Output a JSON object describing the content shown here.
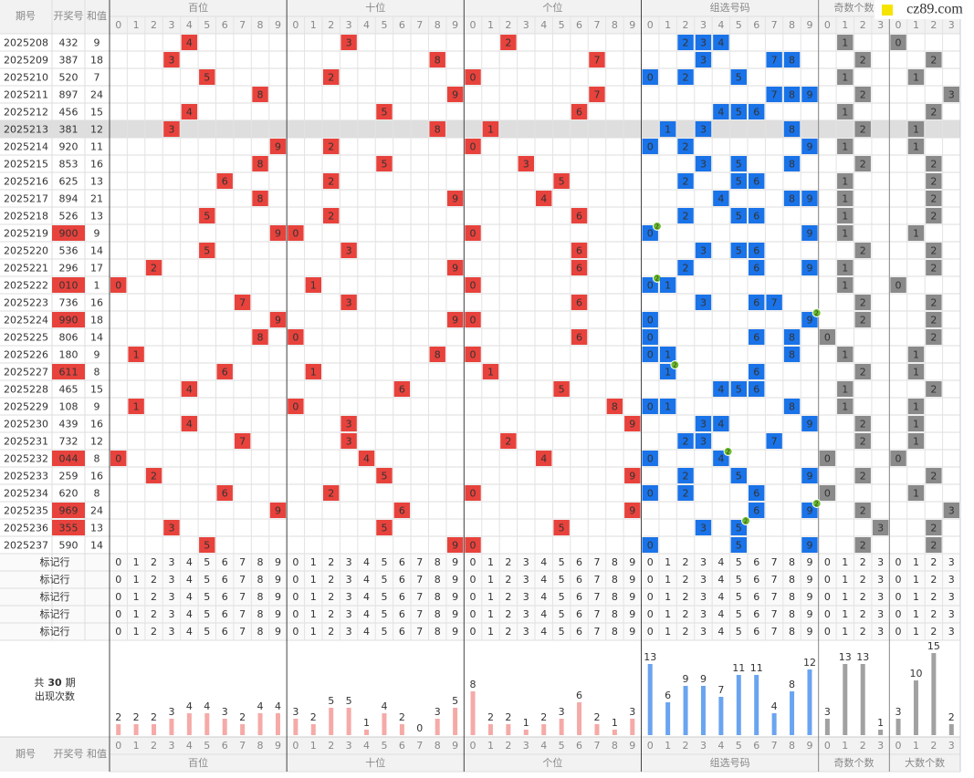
{
  "logo": "cz89.com",
  "header": {
    "issue": "期号",
    "number": "开奖号",
    "sum": "和值"
  },
  "groups": [
    {
      "name": "百位",
      "digits": [
        0,
        1,
        2,
        3,
        4,
        5,
        6,
        7,
        8,
        9
      ]
    },
    {
      "name": "十位",
      "digits": [
        0,
        1,
        2,
        3,
        4,
        5,
        6,
        7,
        8,
        9
      ]
    },
    {
      "name": "个位",
      "digits": [
        0,
        1,
        2,
        3,
        4,
        5,
        6,
        7,
        8,
        9
      ]
    },
    {
      "name": "组选号码",
      "digits": [
        0,
        1,
        2,
        3,
        4,
        5,
        6,
        7,
        8,
        9
      ]
    },
    {
      "name": "奇数个数",
      "digits": [
        0,
        1,
        2,
        3
      ]
    },
    {
      "name": "大数个数",
      "digits": [
        0,
        1,
        2,
        3
      ]
    }
  ],
  "rows": [
    {
      "issue": "2025208",
      "number": "432",
      "sum": 9,
      "digits": [
        4,
        3,
        2
      ],
      "odd": 1,
      "big": 0
    },
    {
      "issue": "2025209",
      "number": "387",
      "sum": 18,
      "digits": [
        3,
        8,
        7
      ],
      "odd": 2,
      "big": 2
    },
    {
      "issue": "2025210",
      "number": "520",
      "sum": 7,
      "digits": [
        5,
        2,
        0
      ],
      "odd": 1,
      "big": 1
    },
    {
      "issue": "2025211",
      "number": "897",
      "sum": 24,
      "digits": [
        8,
        9,
        7
      ],
      "odd": 2,
      "big": 3
    },
    {
      "issue": "2025212",
      "number": "456",
      "sum": 15,
      "digits": [
        4,
        5,
        6
      ],
      "odd": 1,
      "big": 2
    },
    {
      "issue": "2025213",
      "number": "381",
      "sum": 12,
      "digits": [
        3,
        8,
        1
      ],
      "odd": 2,
      "big": 1,
      "highlighted": true
    },
    {
      "issue": "2025214",
      "number": "920",
      "sum": 11,
      "digits": [
        9,
        2,
        0
      ],
      "odd": 1,
      "big": 1
    },
    {
      "issue": "2025215",
      "number": "853",
      "sum": 16,
      "digits": [
        8,
        5,
        3
      ],
      "odd": 2,
      "big": 2
    },
    {
      "issue": "2025216",
      "number": "625",
      "sum": 13,
      "digits": [
        6,
        2,
        5
      ],
      "odd": 1,
      "big": 2
    },
    {
      "issue": "2025217",
      "number": "894",
      "sum": 21,
      "digits": [
        8,
        9,
        4
      ],
      "odd": 1,
      "big": 2
    },
    {
      "issue": "2025218",
      "number": "526",
      "sum": 13,
      "digits": [
        5,
        2,
        6
      ],
      "odd": 1,
      "big": 2
    },
    {
      "issue": "2025219",
      "number": "900",
      "sum": 9,
      "digits": [
        9,
        0,
        0
      ],
      "odd": 1,
      "big": 1,
      "badge": 2
    },
    {
      "issue": "2025220",
      "number": "536",
      "sum": 14,
      "digits": [
        5,
        3,
        6
      ],
      "odd": 2,
      "big": 2
    },
    {
      "issue": "2025221",
      "number": "296",
      "sum": 17,
      "digits": [
        2,
        9,
        6
      ],
      "odd": 1,
      "big": 2
    },
    {
      "issue": "2025222",
      "number": "010",
      "sum": 1,
      "digits": [
        0,
        1,
        0
      ],
      "odd": 1,
      "big": 0,
      "badge": 2
    },
    {
      "issue": "2025223",
      "number": "736",
      "sum": 16,
      "digits": [
        7,
        3,
        6
      ],
      "odd": 2,
      "big": 2
    },
    {
      "issue": "2025224",
      "number": "990",
      "sum": 18,
      "digits": [
        9,
        9,
        0
      ],
      "odd": 2,
      "big": 2,
      "badge": 2
    },
    {
      "issue": "2025225",
      "number": "806",
      "sum": 14,
      "digits": [
        8,
        0,
        6
      ],
      "odd": 0,
      "big": 2
    },
    {
      "issue": "2025226",
      "number": "180",
      "sum": 9,
      "digits": [
        1,
        8,
        0
      ],
      "odd": 1,
      "big": 1
    },
    {
      "issue": "2025227",
      "number": "611",
      "sum": 8,
      "digits": [
        6,
        1,
        1
      ],
      "odd": 2,
      "big": 1,
      "badge": 2
    },
    {
      "issue": "2025228",
      "number": "465",
      "sum": 15,
      "digits": [
        4,
        6,
        5
      ],
      "odd": 1,
      "big": 2
    },
    {
      "issue": "2025229",
      "number": "108",
      "sum": 9,
      "digits": [
        1,
        0,
        8
      ],
      "odd": 1,
      "big": 1
    },
    {
      "issue": "2025230",
      "number": "439",
      "sum": 16,
      "digits": [
        4,
        3,
        9
      ],
      "odd": 2,
      "big": 1
    },
    {
      "issue": "2025231",
      "number": "732",
      "sum": 12,
      "digits": [
        7,
        3,
        2
      ],
      "odd": 2,
      "big": 1
    },
    {
      "issue": "2025232",
      "number": "044",
      "sum": 8,
      "digits": [
        0,
        4,
        4
      ],
      "odd": 0,
      "big": 0,
      "badge": 2
    },
    {
      "issue": "2025233",
      "number": "259",
      "sum": 16,
      "digits": [
        2,
        5,
        9
      ],
      "odd": 2,
      "big": 2
    },
    {
      "issue": "2025234",
      "number": "620",
      "sum": 8,
      "digits": [
        6,
        2,
        0
      ],
      "odd": 0,
      "big": 1
    },
    {
      "issue": "2025235",
      "number": "969",
      "sum": 24,
      "digits": [
        9,
        6,
        9
      ],
      "odd": 2,
      "big": 3,
      "badge": 2
    },
    {
      "issue": "2025236",
      "number": "355",
      "sum": 13,
      "digits": [
        3,
        5,
        5
      ],
      "odd": 3,
      "big": 2,
      "badge": 2
    },
    {
      "issue": "2025237",
      "number": "590",
      "sum": 14,
      "digits": [
        5,
        9,
        0
      ],
      "odd": 2,
      "big": 2
    }
  ],
  "marker_rows": [
    "标记行",
    "标记行",
    "标记行",
    "标记行",
    "标记行"
  ],
  "stats": {
    "prefix": "共",
    "periods": 30,
    "suffix": "期",
    "caption": "出现次数",
    "counts": [
      [
        2,
        2,
        2,
        3,
        4,
        4,
        3,
        2,
        4,
        4
      ],
      [
        3,
        2,
        5,
        5,
        1,
        4,
        2,
        0,
        3,
        5
      ],
      [
        8,
        2,
        2,
        1,
        2,
        3,
        6,
        2,
        1,
        3
      ],
      [
        13,
        6,
        9,
        9,
        7,
        11,
        11,
        4,
        8,
        12
      ],
      [
        3,
        13,
        13,
        1
      ],
      [
        3,
        10,
        15,
        2
      ]
    ]
  },
  "colors": {
    "position": "#e8423c",
    "combo": "#1a73e8",
    "count": "#8a8a8a",
    "badge": "#6cbd2a",
    "highlight": "#dedede"
  }
}
